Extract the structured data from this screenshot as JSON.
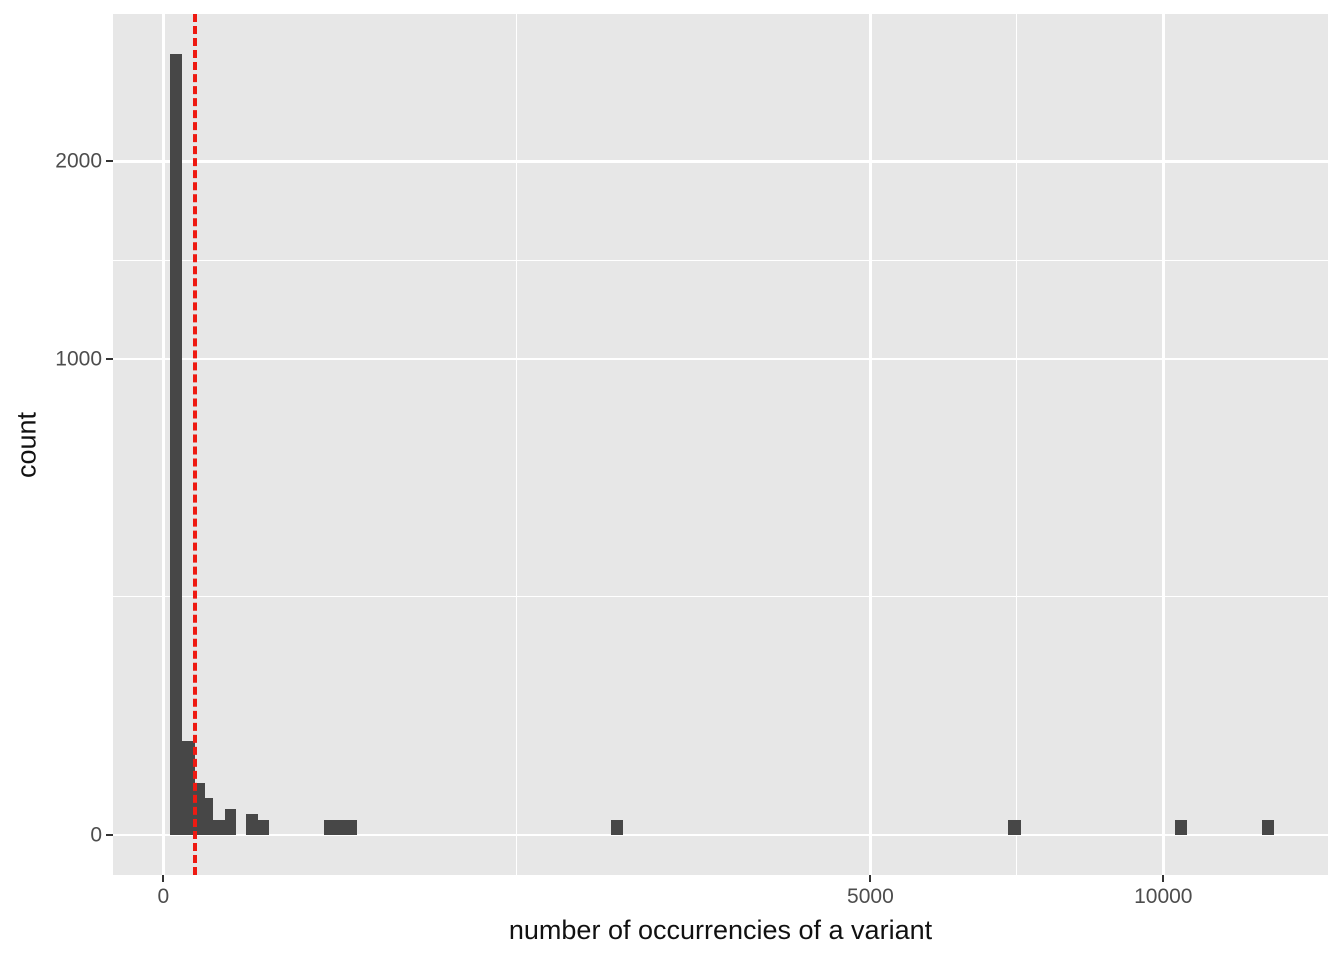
{
  "figure": {
    "background": "#FFFFFF",
    "panel_background": "#E7E7E7",
    "grid_color": "#FFFFFF",
    "bar_color": "#474747",
    "vline_color": "#EE1A12",
    "tick_label_color": "#4D4D4D",
    "axis_title_color": "#111111"
  },
  "chart_data": {
    "type": "bar",
    "subtype": "histogram",
    "title": "",
    "xlabel": "number of occurrencies of a variant",
    "ylabel": "count",
    "x_scale": "sqrt",
    "y_scale": "sqrt",
    "x_ticks": [
      0,
      5000,
      10000
    ],
    "x_tick_labels": [
      "0",
      "5000",
      "10000"
    ],
    "y_ticks": [
      0,
      1000,
      2000
    ],
    "y_tick_labels": [
      "0",
      "1000",
      "2000"
    ],
    "grid": "major-and-minor",
    "legend": "none",
    "vline_x": 10,
    "vline_style": "dashed-red",
    "bars": [
      {
        "from": 0.4,
        "to": 3.5,
        "count": 2690
      },
      {
        "from": 3.5,
        "to": 9.9,
        "count": 39
      },
      {
        "from": 9.9,
        "to": 17.4,
        "count": 12
      },
      {
        "from": 17.4,
        "to": 25,
        "count": 6
      },
      {
        "from": 25,
        "to": 38,
        "count": 1
      },
      {
        "from": 38,
        "to": 53,
        "count": 3
      },
      {
        "from": 68,
        "to": 89,
        "count": 2
      },
      {
        "from": 89,
        "to": 112,
        "count": 1
      },
      {
        "from": 258,
        "to": 374,
        "count": 1
      },
      {
        "from": 2000,
        "to": 2115,
        "count": 1
      },
      {
        "from": 7135,
        "to": 7350,
        "count": 1
      },
      {
        "from": 10235,
        "to": 10485,
        "count": 1
      },
      {
        "from": 12070,
        "to": 12345,
        "count": 1
      }
    ]
  }
}
